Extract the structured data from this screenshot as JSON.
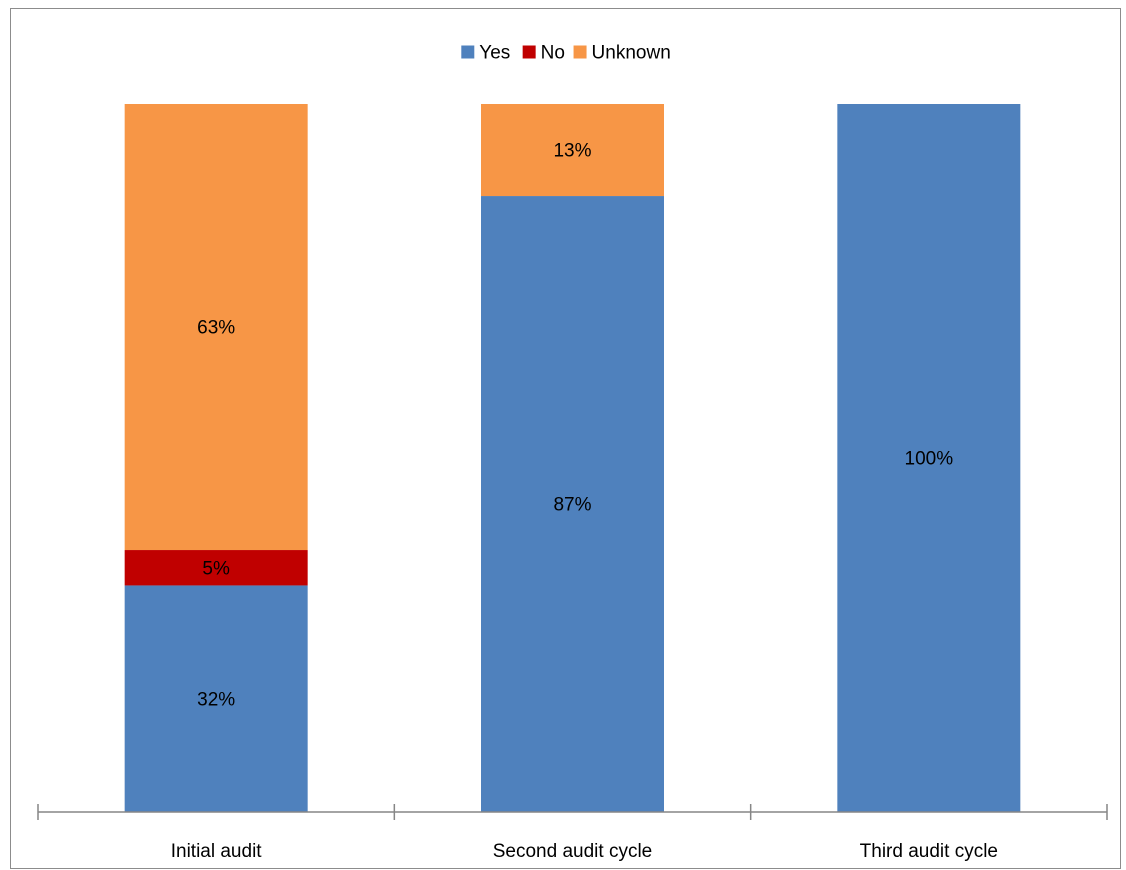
{
  "chart_data": {
    "type": "bar",
    "stacked": true,
    "categories": [
      "Initial audit",
      "Second audit cycle",
      "Third audit cycle"
    ],
    "series": [
      {
        "name": "Yes",
        "color": "#4f81bd",
        "values": [
          32,
          87,
          100
        ],
        "labels": [
          "32%",
          "87%",
          "100%"
        ]
      },
      {
        "name": "No",
        "color": "#c00000",
        "values": [
          5,
          0,
          0
        ],
        "labels": [
          "5%",
          "",
          ""
        ]
      },
      {
        "name": "Unknown",
        "color": "#f79646",
        "values": [
          63,
          13,
          0
        ],
        "labels": [
          "63%",
          "13%",
          ""
        ]
      }
    ],
    "ylim": [
      0,
      100
    ],
    "grid": false,
    "legend_position": "top"
  }
}
